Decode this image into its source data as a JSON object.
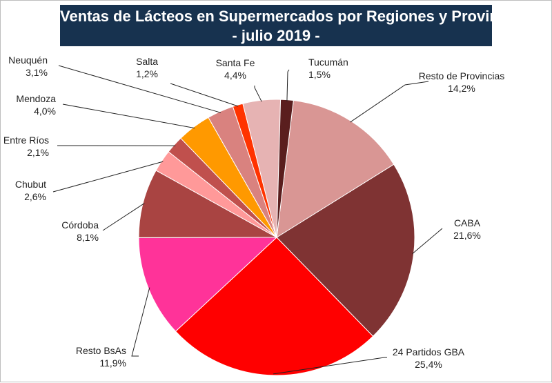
{
  "chart_data": {
    "type": "pie",
    "title": "Ventas de Lácteos en Supermercados por Regiones y Provincias",
    "subtitle": "- julio 2019 -",
    "slices": [
      {
        "name": "Resto de Provincias",
        "value_label": "14,2%",
        "value": 14.2,
        "color": "#d99694"
      },
      {
        "name": "CABA",
        "value_label": "21,6%",
        "value": 21.6,
        "color": "#7f3333"
      },
      {
        "name": "24 Partidos GBA",
        "value_label": "25,4%",
        "value": 25.4,
        "color": "#ff0000"
      },
      {
        "name": "Resto BsAs",
        "value_label": "11,9%",
        "value": 11.9,
        "color": "#ff3399"
      },
      {
        "name": "Córdoba",
        "value_label": "8,1%",
        "value": 8.1,
        "color": "#a94442"
      },
      {
        "name": "Chubut",
        "value_label": "2,6%",
        "value": 2.6,
        "color": "#ff9999"
      },
      {
        "name": "Entre Ríos",
        "value_label": "2,1%",
        "value": 2.1,
        "color": "#c0504d"
      },
      {
        "name": "Mendoza",
        "value_label": "4,0%",
        "value": 4.0,
        "color": "#ff9900"
      },
      {
        "name": "Neuquén",
        "value_label": "3,1%",
        "value": 3.1,
        "color": "#d9827f"
      },
      {
        "name": "Salta",
        "value_label": "1,2%",
        "value": 1.2,
        "color": "#ff3300"
      },
      {
        "name": "Santa Fe",
        "value_label": "4,4%",
        "value": 4.4,
        "color": "#e6b3b3"
      },
      {
        "name": "Tucumán",
        "value_label": "1,5%",
        "value": 1.5,
        "color": "#5a1e1e"
      }
    ]
  }
}
